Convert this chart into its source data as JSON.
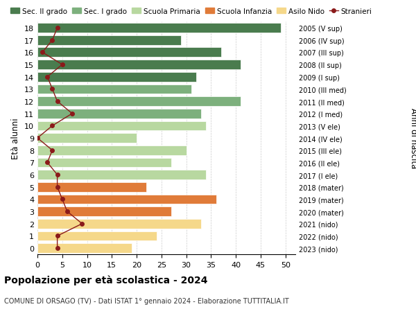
{
  "ages": [
    18,
    17,
    16,
    15,
    14,
    13,
    12,
    11,
    10,
    9,
    8,
    7,
    6,
    5,
    4,
    3,
    2,
    1,
    0
  ],
  "anni_nascita": [
    "2005 (V sup)",
    "2006 (IV sup)",
    "2007 (III sup)",
    "2008 (II sup)",
    "2009 (I sup)",
    "2010 (III med)",
    "2011 (II med)",
    "2012 (I med)",
    "2013 (V ele)",
    "2014 (IV ele)",
    "2015 (III ele)",
    "2016 (II ele)",
    "2017 (I ele)",
    "2018 (mater)",
    "2019 (mater)",
    "2020 (mater)",
    "2021 (nido)",
    "2022 (nido)",
    "2023 (nido)"
  ],
  "bar_values": [
    49,
    29,
    37,
    41,
    32,
    31,
    41,
    33,
    34,
    20,
    30,
    27,
    34,
    22,
    36,
    27,
    33,
    24,
    19
  ],
  "bar_colors": [
    "#4a7c4e",
    "#4a7c4e",
    "#4a7c4e",
    "#4a7c4e",
    "#4a7c4e",
    "#7db07d",
    "#7db07d",
    "#7db07d",
    "#b8d8a0",
    "#b8d8a0",
    "#b8d8a0",
    "#b8d8a0",
    "#b8d8a0",
    "#e07b39",
    "#e07b39",
    "#e07b39",
    "#f5d88a",
    "#f5d88a",
    "#f5d88a"
  ],
  "stranieri_values": [
    4,
    3,
    1,
    5,
    2,
    3,
    4,
    7,
    3,
    0,
    3,
    2,
    4,
    4,
    5,
    6,
    9,
    4,
    4
  ],
  "legend_labels": [
    "Sec. II grado",
    "Sec. I grado",
    "Scuola Primaria",
    "Scuola Infanzia",
    "Asilo Nido",
    "Stranieri"
  ],
  "legend_colors": [
    "#4a7c4e",
    "#7db07d",
    "#b8d8a0",
    "#e07b39",
    "#f5d88a",
    "#8b1a1a"
  ],
  "title_bold": "Popolazione per età scolastica - 2024",
  "subtitle": "COMUNE DI ORSAGO (TV) - Dati ISTAT 1° gennaio 2024 - Elaborazione TUTTITALIA.IT",
  "ylabel_left": "Età alunni",
  "ylabel_right": "Anni di nascita",
  "xlim": [
    0,
    52
  ],
  "xticks": [
    0,
    5,
    10,
    15,
    20,
    25,
    30,
    35,
    40,
    45,
    50
  ],
  "background_color": "#ffffff",
  "bar_height": 0.78,
  "grid_color": "#cccccc",
  "stranieri_line_color": "#8b1a1a",
  "stranieri_marker_color": "#8b1a1a"
}
